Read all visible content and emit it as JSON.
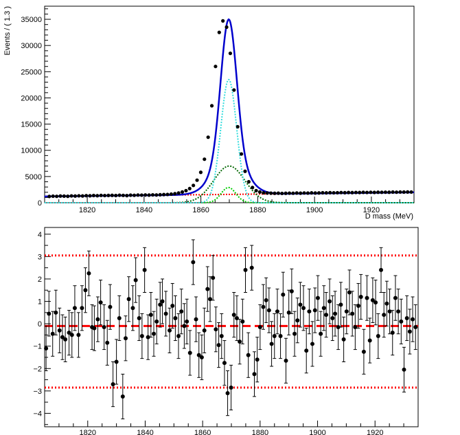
{
  "colors": {
    "data_points": "#000000",
    "total_fit": "#0000cc",
    "background": "#ff0000",
    "signal_cyan": "#33dddd",
    "signal_darkgreen": "#006600",
    "signal_green": "#00cc00",
    "pull_zero": "#ff0000",
    "pull_band": "#ff0000"
  },
  "chart_data": [
    {
      "id": "fit",
      "type": "line",
      "title": "",
      "xlabel": "D mass (MeV)",
      "ylabel": "Events / ( 1.3 )",
      "xlim": [
        1805,
        1935
      ],
      "ylim": [
        0,
        37500
      ],
      "xticks": [
        1820,
        1840,
        1860,
        1880,
        1900,
        1920
      ],
      "yticks": [
        0,
        5000,
        10000,
        15000,
        20000,
        25000,
        30000,
        35000
      ],
      "components": [
        {
          "name": "total fit",
          "style": "solid",
          "color": "#0000cc",
          "background": {
            "start": 1200,
            "slope": 6.0
          },
          "peaks": [
            {
              "mean": 1869.8,
              "sigma": 2.8,
              "amp": 23500
            },
            {
              "mean": 1870.0,
              "sigma": 5.5,
              "amp": 7000
            },
            {
              "mean": 1869.7,
              "sigma": 2.6,
              "amp": 2900
            }
          ]
        },
        {
          "name": "signal core",
          "style": "dotted",
          "color": "#33dddd",
          "background": {
            "start": 0,
            "slope": 0
          },
          "peaks": [
            {
              "mean": 1869.8,
              "sigma": 2.8,
              "amp": 23500
            }
          ]
        },
        {
          "name": "signal wide",
          "style": "dotted",
          "color": "#006600",
          "background": {
            "start": 0,
            "slope": 0
          },
          "peaks": [
            {
              "mean": 1870.0,
              "sigma": 5.5,
              "amp": 7000
            }
          ]
        },
        {
          "name": "signal narrow",
          "style": "dotted",
          "color": "#00cc00",
          "background": {
            "start": 0,
            "slope": 0
          },
          "peaks": [
            {
              "mean": 1869.7,
              "sigma": 2.6,
              "amp": 2900
            }
          ]
        },
        {
          "name": "background",
          "style": "dotted",
          "color": "#ff0000",
          "background": {
            "start": 1200,
            "slope": 6.0
          },
          "peaks": []
        }
      ],
      "points": {
        "x": [
          1806.65,
          1807.95,
          1809.25,
          1810.55,
          1811.85,
          1813.15,
          1814.45,
          1815.75,
          1817.05,
          1818.35,
          1819.65,
          1820.95,
          1822.25,
          1823.55,
          1824.85,
          1826.15,
          1827.45,
          1828.75,
          1830.05,
          1831.35,
          1832.65,
          1833.95,
          1835.25,
          1836.55,
          1837.85,
          1839.15,
          1840.45,
          1841.75,
          1843.05,
          1844.35,
          1845.65,
          1846.95,
          1848.25,
          1849.55,
          1850.85,
          1852.15,
          1853.45,
          1854.75,
          1856.05,
          1857.35,
          1858.65,
          1859.95,
          1861.25,
          1862.55,
          1863.85,
          1865.15,
          1866.45,
          1867.75,
          1869.05,
          1870.35,
          1871.65,
          1872.95,
          1874.25,
          1875.55,
          1876.85,
          1878.15,
          1879.45,
          1880.75,
          1882.05,
          1883.35,
          1884.65,
          1885.95,
          1887.25,
          1888.55,
          1889.85,
          1891.15,
          1892.45,
          1893.75,
          1895.05,
          1896.35,
          1897.65,
          1898.95,
          1900.25,
          1901.55,
          1902.85,
          1904.15,
          1905.45,
          1906.75,
          1908.05,
          1909.35,
          1910.65,
          1911.95,
          1913.25,
          1914.55,
          1915.85,
          1917.15,
          1918.45,
          1919.75,
          1921.05,
          1922.35,
          1923.65,
          1924.95,
          1926.25,
          1927.55,
          1928.85,
          1930.15,
          1931.45,
          1932.75,
          1934.05
        ],
        "y": [
          1200,
          1250,
          1220,
          1280,
          1260,
          1230,
          1300,
          1280,
          1320,
          1290,
          1350,
          1330,
          1380,
          1340,
          1400,
          1370,
          1390,
          1410,
          1380,
          1430,
          1400,
          1360,
          1440,
          1420,
          1470,
          1450,
          1480,
          1460,
          1500,
          1480,
          1520,
          1560,
          1580,
          1650,
          1720,
          1850,
          2050,
          2300,
          2700,
          3300,
          4300,
          5800,
          8300,
          12500,
          18500,
          26000,
          32500,
          34700,
          33500,
          28500,
          21500,
          14500,
          9300,
          6000,
          4000,
          2900,
          2300,
          2050,
          1900,
          1850,
          1820,
          1800,
          1820,
          1780,
          1800,
          1830,
          1810,
          1850,
          1820,
          1860,
          1840,
          1880,
          1850,
          1870,
          1900,
          1880,
          1920,
          1890,
          1910,
          1940,
          1920,
          1950,
          1930,
          1960,
          1950,
          1980,
          1960,
          1990,
          1970,
          2000,
          1990,
          2010,
          2000,
          2030,
          2010,
          2040,
          2030,
          2050,
          2040
        ]
      }
    },
    {
      "id": "pull",
      "type": "scatter",
      "title": "",
      "xlabel": "",
      "ylabel": "",
      "xlim": [
        1805,
        1935
      ],
      "ylim": [
        -4.6,
        4.3
      ],
      "xticks": [
        1820,
        1840,
        1860,
        1880,
        1900,
        1920
      ],
      "yticks": [
        -4,
        -3,
        -2,
        -1,
        0,
        1,
        2,
        3,
        4
      ],
      "reference_lines": [
        {
          "y": -0.1,
          "style": "dashed",
          "color": "#ff0000"
        },
        {
          "y": 3.05,
          "style": "dotted",
          "color": "#ff0000"
        },
        {
          "y": -2.85,
          "style": "dotted",
          "color": "#ff0000"
        }
      ],
      "error": 1.0,
      "points": {
        "x": [
          1805.5,
          1806.5,
          1807.8,
          1808.9,
          1810.2,
          1811.2,
          1812.2,
          1813.5,
          1814.5,
          1815.5,
          1816.8,
          1818.0,
          1819.2,
          1820.4,
          1821.5,
          1822.3,
          1823.5,
          1824.5,
          1825.7,
          1826.8,
          1827.8,
          1828.8,
          1830.0,
          1831.0,
          1832.2,
          1833.2,
          1834.3,
          1835.7,
          1836.7,
          1837.9,
          1838.9,
          1839.8,
          1841.0,
          1842.0,
          1843.0,
          1844.0,
          1845.2,
          1846.0,
          1847.2,
          1848.5,
          1849.5,
          1850.5,
          1851.6,
          1852.6,
          1853.6,
          1854.5,
          1855.6,
          1856.7,
          1857.7,
          1858.7,
          1859.7,
          1860.6,
          1861.7,
          1862.6,
          1863.6,
          1864.6,
          1865.6,
          1866.6,
          1867.6,
          1868.7,
          1869.9,
          1870.9,
          1871.9,
          1872.9,
          1873.9,
          1874.9,
          1875.9,
          1877.1,
          1878.0,
          1879.0,
          1880.0,
          1881.1,
          1882.1,
          1883.1,
          1884.0,
          1885.0,
          1886.0,
          1887.1,
          1888.0,
          1889.0,
          1890.0,
          1891.0,
          1892.0,
          1893.0,
          1894.0,
          1895.1,
          1896.1,
          1897.1,
          1898.2,
          1899.1,
          1900.1,
          1901.1,
          1902.2,
          1903.0,
          1904.2,
          1905.2,
          1906.1,
          1907.2,
          1908.1,
          1909.1,
          1910.1,
          1911.1,
          1912.1,
          1913.1,
          1914.2,
          1915.1,
          1916.1,
          1917.2,
          1918.2,
          1919.2,
          1920.2,
          1921.1,
          1922.1,
          1923.1,
          1924.1,
          1925.1,
          1926.1,
          1927.1,
          1928.1,
          1929.1,
          1930.1,
          1931.1,
          1932.1,
          1933.1,
          1934.1
        ],
        "y": [
          -1.1,
          0.45,
          -0.45,
          0.5,
          -0.3,
          -0.6,
          -0.7,
          -0.4,
          -0.5,
          0.7,
          -0.5,
          0.7,
          1.5,
          2.25,
          -0.15,
          -0.2,
          0.2,
          0.95,
          -0.15,
          -0.85,
          0.75,
          -2.7,
          -1.7,
          0.25,
          -3.25,
          -0.65,
          1.1,
          0.7,
          1.95,
          0.25,
          -0.55,
          2.4,
          -0.6,
          0.4,
          -0.45,
          0.1,
          0.85,
          1.0,
          0.45,
          -0.3,
          0.8,
          0.25,
          -0.55,
          0.55,
          -0.1,
          0.1,
          -1.3,
          2.75,
          0.2,
          -1.4,
          -1.5,
          -0.3,
          1.55,
          1.1,
          2.05,
          -0.25,
          -0.95,
          -0.55,
          -1.75,
          -3.1,
          -2.85,
          0.4,
          0.25,
          -0.8,
          0.1,
          2.4,
          -1.4,
          2.5,
          -2.25,
          -1.6,
          -0.15,
          0.75,
          1.05,
          0.6,
          -0.9,
          -0.55,
          0.55,
          -0.55,
          1.3,
          -1.65,
          0.5,
          1.45,
          -0.45,
          0.15,
          0.85,
          0.7,
          -1.2,
          0.55,
          -0.9,
          0.6,
          1.15,
          -0.45,
          0.7,
          0.4,
          1.0,
          0.25,
          0.45,
          -0.15,
          0.85,
          -0.7,
          0.55,
          1.4,
          0.45,
          -0.15,
          0.8,
          1.2,
          -1.25,
          1.15,
          -0.75,
          1.05,
          0.95,
          -0.55,
          2.4,
          0.4,
          0.9,
          0.55,
          -0.4,
          1.15,
          0.55,
          0.1,
          -2.05,
          0.25,
          -0.35,
          0.2,
          -0.15
        ]
      }
    }
  ]
}
